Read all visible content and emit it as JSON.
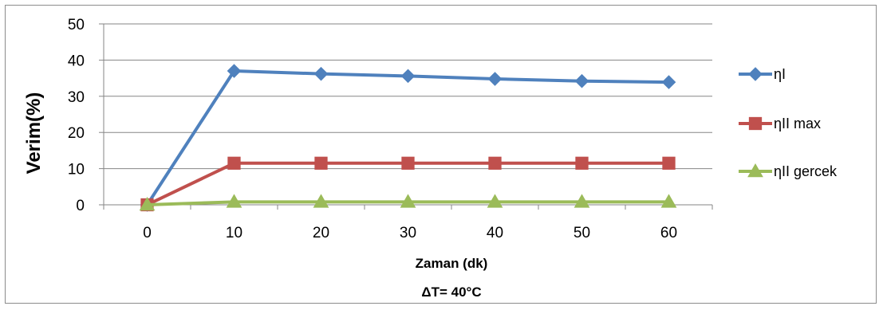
{
  "chart_data": {
    "type": "line",
    "xlabel": "Zaman (dk)",
    "xlabel_sub": "ΔT= 40°C",
    "ylabel": "Verim(%)",
    "ylim": [
      0,
      50
    ],
    "yticks": [
      0,
      10,
      20,
      30,
      40,
      50
    ],
    "categories": [
      "0",
      "10",
      "20",
      "30",
      "40",
      "50",
      "60"
    ],
    "grid": "horizontal",
    "legend_position": "right",
    "series": [
      {
        "name": "ηI",
        "values": [
          0,
          37,
          36.2,
          35.6,
          34.8,
          34.2,
          33.9
        ],
        "color": "#4f81bd",
        "marker": "diamond"
      },
      {
        "name": "ηII max",
        "values": [
          0,
          11.5,
          11.5,
          11.5,
          11.5,
          11.5,
          11.5
        ],
        "color": "#c0504d",
        "marker": "square"
      },
      {
        "name": "ηII gercek",
        "values": [
          0,
          0.8,
          0.8,
          0.8,
          0.8,
          0.8,
          0.8
        ],
        "color": "#9bbb59",
        "marker": "triangle"
      }
    ]
  }
}
